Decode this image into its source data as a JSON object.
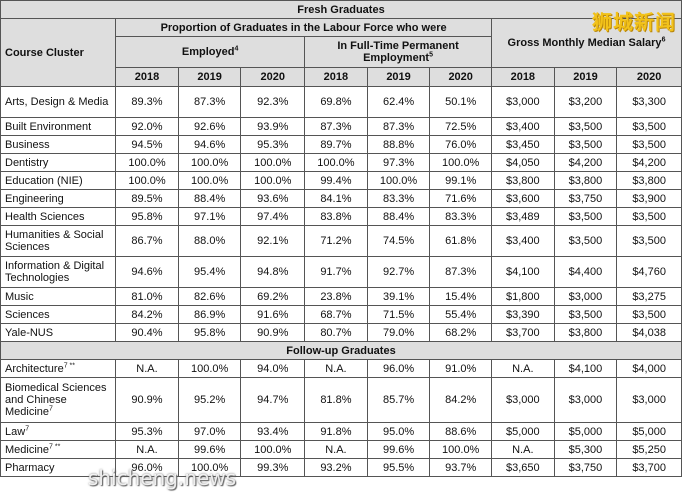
{
  "title": "Fresh Graduates",
  "header": {
    "course_cluster": "Course Cluster",
    "proportion": "Proportion of Graduates in the Labour Force who were",
    "employed": "Employed",
    "employed_note": "4",
    "fulltime": "In Full-Time Permanent Employment",
    "fulltime_note": "5",
    "salary": "Gross Monthly Median Salary",
    "salary_note": "6",
    "years": [
      "2018",
      "2019",
      "2020",
      "2018",
      "2019",
      "2020",
      "2018",
      "2019",
      "2020"
    ]
  },
  "fresh_rows": [
    {
      "name": "Arts, Design & Media",
      "note": "",
      "values": [
        "89.3%",
        "87.3%",
        "92.3%",
        "69.8%",
        "62.4%",
        "50.1%",
        "$3,000",
        "$3,200",
        "$3,300"
      ]
    },
    {
      "name": "Built Environment",
      "note": "",
      "values": [
        "92.0%",
        "92.6%",
        "93.9%",
        "87.3%",
        "87.3%",
        "72.5%",
        "$3,400",
        "$3,500",
        "$3,500"
      ]
    },
    {
      "name": "Business",
      "note": "",
      "values": [
        "94.5%",
        "94.6%",
        "95.3%",
        "89.7%",
        "88.8%",
        "76.0%",
        "$3,450",
        "$3,500",
        "$3,500"
      ]
    },
    {
      "name": "Dentistry",
      "note": "",
      "values": [
        "100.0%",
        "100.0%",
        "100.0%",
        "100.0%",
        "97.3%",
        "100.0%",
        "$4,050",
        "$4,200",
        "$4,200"
      ]
    },
    {
      "name": "Education (NIE)",
      "note": "",
      "values": [
        "100.0%",
        "100.0%",
        "100.0%",
        "99.4%",
        "100.0%",
        "99.1%",
        "$3,800",
        "$3,800",
        "$3,800"
      ]
    },
    {
      "name": "Engineering",
      "note": "",
      "values": [
        "89.5%",
        "88.4%",
        "93.6%",
        "84.1%",
        "83.3%",
        "71.6%",
        "$3,600",
        "$3,750",
        "$3,900"
      ]
    },
    {
      "name": "Health Sciences",
      "note": "",
      "values": [
        "95.8%",
        "97.1%",
        "97.4%",
        "83.8%",
        "88.4%",
        "83.3%",
        "$3,489",
        "$3,500",
        "$3,500"
      ]
    },
    {
      "name": "Humanities & Social Sciences",
      "note": "",
      "values": [
        "86.7%",
        "88.0%",
        "92.1%",
        "71.2%",
        "74.5%",
        "61.8%",
        "$3,400",
        "$3,500",
        "$3,500"
      ]
    },
    {
      "name": "Information & Digital Technologies",
      "note": "",
      "values": [
        "94.6%",
        "95.4%",
        "94.8%",
        "91.7%",
        "92.7%",
        "87.3%",
        "$4,100",
        "$4,400",
        "$4,760"
      ]
    },
    {
      "name": "Music",
      "note": "",
      "values": [
        "81.0%",
        "82.6%",
        "69.2%",
        "23.8%",
        "39.1%",
        "15.4%",
        "$1,800",
        "$3,000",
        "$3,275"
      ]
    },
    {
      "name": "Sciences",
      "note": "",
      "values": [
        "84.2%",
        "86.9%",
        "91.6%",
        "68.7%",
        "71.5%",
        "55.4%",
        "$3,390",
        "$3,500",
        "$3,500"
      ]
    },
    {
      "name": "Yale-NUS",
      "note": "",
      "values": [
        "90.4%",
        "95.8%",
        "90.9%",
        "80.7%",
        "79.0%",
        "68.2%",
        "$3,700",
        "$3,800",
        "$4,038"
      ]
    }
  ],
  "followup_title": "Follow-up Graduates",
  "followup_rows": [
    {
      "name": "Architecture",
      "note": "7 **",
      "values": [
        "N.A.",
        "100.0%",
        "94.0%",
        "N.A.",
        "96.0%",
        "91.0%",
        "N.A.",
        "$4,100",
        "$4,000"
      ]
    },
    {
      "name": "Biomedical Sciences and Chinese Medicine",
      "note": "7",
      "values": [
        "90.9%",
        "95.2%",
        "94.7%",
        "81.8%",
        "85.7%",
        "84.2%",
        "$3,000",
        "$3,000",
        "$3,000"
      ]
    },
    {
      "name": "Law",
      "note": "7",
      "values": [
        "95.3%",
        "97.0%",
        "93.4%",
        "91.8%",
        "95.0%",
        "88.6%",
        "$5,000",
        "$5,000",
        "$5,000"
      ]
    },
    {
      "name": "Medicine",
      "note": "7 **",
      "values": [
        "N.A.",
        "99.6%",
        "100.0%",
        "N.A.",
        "99.6%",
        "100.0%",
        "N.A.",
        "$5,300",
        "$5,250"
      ]
    },
    {
      "name": "Pharmacy",
      "note": "",
      "values": [
        "96.0%",
        "100.0%",
        "99.3%",
        "93.2%",
        "95.5%",
        "93.7%",
        "$3,650",
        "$3,750",
        "$3,700"
      ]
    }
  ],
  "watermarks": {
    "top": "狮城新闻",
    "bottom": "shicheng.news"
  }
}
